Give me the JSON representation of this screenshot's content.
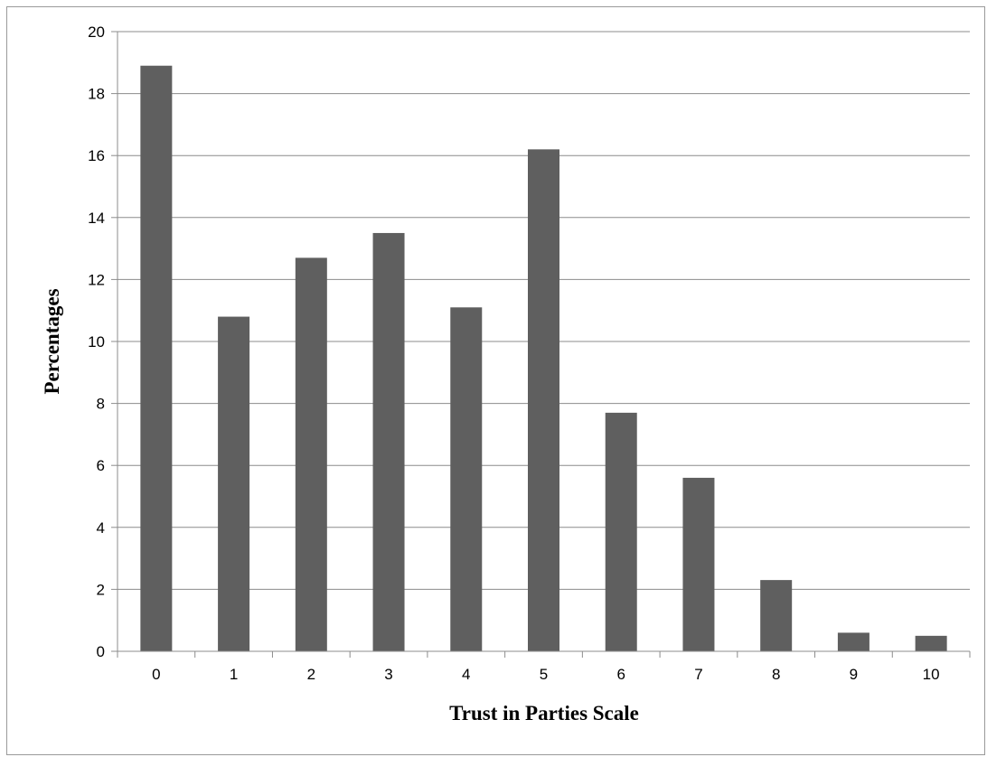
{
  "chart_data": {
    "type": "bar",
    "categories": [
      "0",
      "1",
      "2",
      "3",
      "4",
      "5",
      "6",
      "7",
      "8",
      "9",
      "10"
    ],
    "values": [
      18.9,
      10.8,
      12.7,
      13.5,
      11.1,
      16.2,
      7.7,
      5.6,
      2.3,
      0.6,
      0.5
    ],
    "title": "",
    "xlabel": "Trust in Parties Scale",
    "ylabel": "Percentages",
    "ylim": [
      0,
      20
    ],
    "yticks": [
      "0",
      "2",
      "4",
      "6",
      "8",
      "10",
      "12",
      "14",
      "16",
      "18",
      "20"
    ],
    "grid": true,
    "legend": "none",
    "bar_color": "#5f5f5f"
  }
}
